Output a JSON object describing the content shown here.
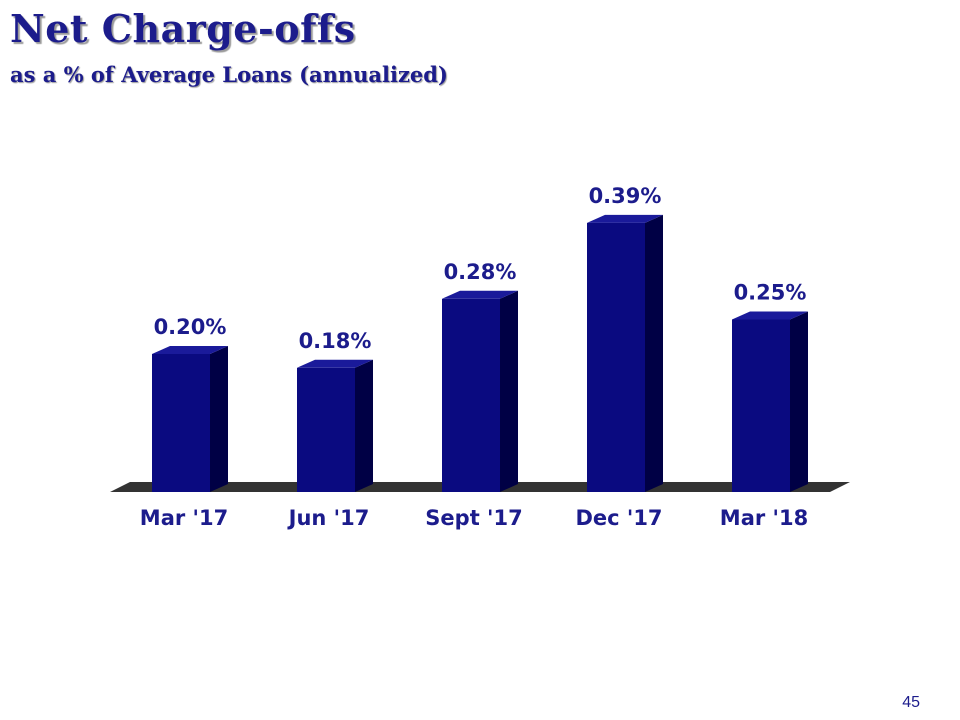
{
  "slide": {
    "title": "Net Charge-offs",
    "subtitle": "as a % of Average Loans (annualized)",
    "page_number": "45"
  },
  "colors": {
    "title": "#1c1c8c",
    "bar_front": "#0a0a80",
    "bar_side": "#000045",
    "bar_top": "#1a1a9a",
    "label": "#1c1c8c",
    "floor": "#333333"
  },
  "chart_data": {
    "type": "bar",
    "categories": [
      "Mar '17",
      "Jun '17",
      "Sept '17",
      "Dec '17",
      "Mar '18"
    ],
    "values": [
      0.2,
      0.18,
      0.28,
      0.39,
      0.25
    ],
    "data_labels": [
      "0.20%",
      "0.18%",
      "0.28%",
      "0.39%",
      "0.25%"
    ],
    "unit": "%",
    "grid": false,
    "legend": "none",
    "style": "3d-columns"
  }
}
